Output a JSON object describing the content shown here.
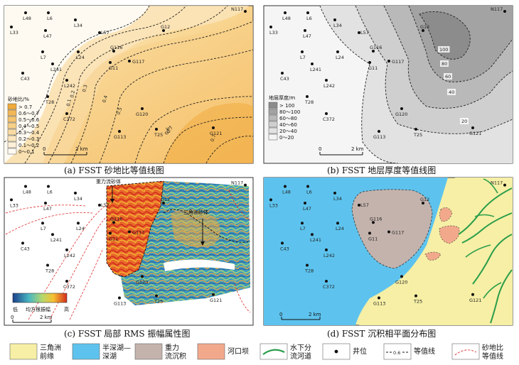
{
  "panels": {
    "a": {
      "caption": "(a) FSST 砂地比等值线图",
      "legend_title": "砂地比/%",
      "legend": [
        "> 0.7",
        "0.6～0.7",
        "0.5～0.6",
        "0.4～0.5",
        "0.3～0.4",
        "0.2～0.3",
        "0.1～0.2",
        "0～0.1"
      ],
      "legend_colors": [
        "#f0a93a",
        "#f3b856",
        "#f5c46f",
        "#f7d088",
        "#f9dba2",
        "#fbe6bd",
        "#fdf0d8",
        "#fefaf1"
      ],
      "contour_labels": [
        "0.7",
        "0.6",
        "0.5",
        "0.4",
        "0.3",
        "0.2",
        "0.1",
        "0.7"
      ],
      "scale": "2 km",
      "scale_zero": "0",
      "wells": [
        "N117",
        "L48",
        "L6",
        "L34",
        "L33",
        "L47",
        "L57",
        "G12",
        "L7",
        "L24",
        "G116",
        "G11",
        "G117",
        "L241",
        "L242",
        "C43",
        "T28",
        "C372",
        "G120",
        "G121",
        "G113",
        "T25"
      ]
    },
    "b": {
      "caption": "(b) FSST 地层厚度等值线图",
      "legend_title": "地层厚度/m",
      "legend": [
        "> 100",
        "80～100",
        "60～80",
        "40～60",
        "20～40",
        "0～20"
      ],
      "legend_colors": [
        "#8c8c8c",
        "#a3a3a3",
        "#b9b9b9",
        "#cfcfcf",
        "#e2e2e2",
        "#f5f5f5"
      ],
      "contour_labels": [
        "100",
        "80",
        "60",
        "40",
        "20"
      ],
      "scale": "2 km",
      "scale_zero": "0"
    },
    "c": {
      "caption": "(c) FSST 局部 RMS 振幅属性图",
      "annotation_1": "重力流砂体",
      "annotation_2": "三角洲砂体",
      "colorbar_low": "低",
      "colorbar_high": "高",
      "colorbar_title": "均方根振幅",
      "scale": "2 km",
      "scale_zero": "0"
    },
    "d": {
      "caption": "(d) FSST 沉积相平面分布图",
      "scale": "2 km",
      "scale_zero": "0"
    }
  },
  "bottom_legend": [
    {
      "label_1": "三角洲",
      "label_2": "前缘",
      "color": "#f6efa5"
    },
    {
      "label_1": "半深湖—",
      "label_2": "深湖",
      "color": "#5dc3ee"
    },
    {
      "label_1": "重力",
      "label_2": "流沉积",
      "color": "#c4b3ad"
    },
    {
      "label_1": "河口坝",
      "label_2": "",
      "color": "#f2a98b"
    },
    {
      "label_1": "水下分",
      "label_2": "流河道",
      "color": "#2a9d4a"
    },
    {
      "label_1": "井位",
      "label_2": ""
    },
    {
      "label_1": "等值线",
      "label_2": "",
      "sample": "0.6"
    },
    {
      "label_1": "砂地比",
      "label_2": "等值线"
    }
  ]
}
